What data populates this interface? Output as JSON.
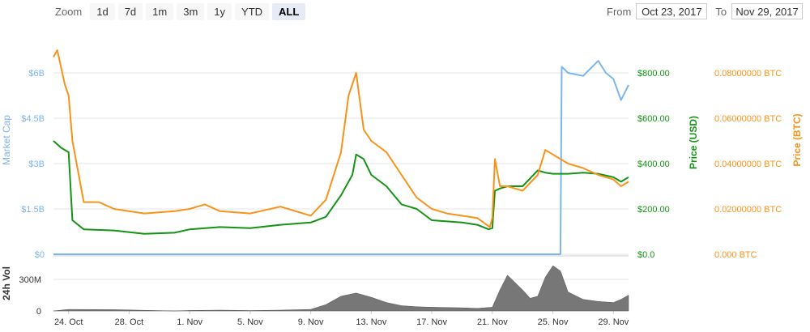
{
  "zoom": {
    "label": "Zoom",
    "buttons": [
      "1d",
      "7d",
      "1m",
      "3m",
      "1y",
      "YTD",
      "ALL"
    ],
    "active": "ALL"
  },
  "range": {
    "from_label": "From",
    "from_value": "Oct 23, 2017",
    "to_label": "To",
    "to_value": "Nov 29, 2017"
  },
  "colors": {
    "market_cap": "#7cb5ec",
    "price_usd": "#149414",
    "price_btc": "#f7931a",
    "volume": "#777777"
  },
  "chart_data": {
    "type": "line",
    "x_start": "2017-10-23",
    "x_end": "2017-11-30",
    "x_tick_labels": [
      "24. Oct",
      "28. Oct",
      "1. Nov",
      "5. Nov",
      "9. Nov",
      "13. Nov",
      "17. Nov",
      "21. Nov",
      "25. Nov",
      "29. Nov"
    ],
    "x_tick_dates": [
      "2017-10-24",
      "2017-10-28",
      "2017-11-01",
      "2017-11-05",
      "2017-11-09",
      "2017-11-13",
      "2017-11-17",
      "2017-11-21",
      "2017-11-25",
      "2017-11-29"
    ],
    "axes": {
      "market_cap": {
        "title": "Market Cap",
        "ticks": [
          "$0",
          "$1.5B",
          "$3B",
          "$4.5B",
          "$6B"
        ],
        "min": 0,
        "max": 6000000000
      },
      "price_usd": {
        "title": "Price (USD)",
        "ticks": [
          "$0.0",
          "$200.00",
          "$400.00",
          "$600.00",
          "$800.00"
        ],
        "min": 0,
        "max": 800
      },
      "price_btc": {
        "title": "Price (BTC)",
        "ticks": [
          "0.000 BTC",
          "0.02000000 BTC",
          "0.04000000 BTC",
          "0.06000000 BTC",
          "0.08000000 BTC"
        ],
        "min": 0,
        "max": 0.08
      },
      "volume": {
        "title": "24h Vol",
        "ticks": [
          "0",
          "300M"
        ],
        "min": 0,
        "max": 300000000
      }
    },
    "series": [
      {
        "name": "Market Cap",
        "axis": "market_cap",
        "points": [
          [
            "2017-10-23",
            0
          ],
          [
            "2017-11-25T12",
            0
          ],
          [
            "2017-11-25T14",
            6200000000
          ],
          [
            "2017-11-26",
            6000000000
          ],
          [
            "2017-11-27",
            5900000000
          ],
          [
            "2017-11-28",
            6400000000
          ],
          [
            "2017-11-28T12",
            6000000000
          ],
          [
            "2017-11-29",
            5800000000
          ],
          [
            "2017-11-29T12",
            5100000000
          ],
          [
            "2017-11-30",
            5600000000
          ]
        ]
      },
      {
        "name": "Price (USD)",
        "axis": "price_usd",
        "points": [
          [
            "2017-10-23",
            500
          ],
          [
            "2017-10-23T12",
            470
          ],
          [
            "2017-10-24",
            450
          ],
          [
            "2017-10-24T06",
            150
          ],
          [
            "2017-10-25",
            110
          ],
          [
            "2017-10-27",
            105
          ],
          [
            "2017-10-29",
            90
          ],
          [
            "2017-10-31",
            95
          ],
          [
            "2017-11-01",
            110
          ],
          [
            "2017-11-03",
            120
          ],
          [
            "2017-11-05",
            115
          ],
          [
            "2017-11-07",
            130
          ],
          [
            "2017-11-09",
            140
          ],
          [
            "2017-11-10",
            165
          ],
          [
            "2017-11-11",
            260
          ],
          [
            "2017-11-11T18",
            350
          ],
          [
            "2017-11-12",
            440
          ],
          [
            "2017-11-12T12",
            420
          ],
          [
            "2017-11-13",
            350
          ],
          [
            "2017-11-14",
            300
          ],
          [
            "2017-11-15",
            220
          ],
          [
            "2017-11-16",
            200
          ],
          [
            "2017-11-17",
            150
          ],
          [
            "2017-11-18",
            145
          ],
          [
            "2017-11-19",
            140
          ],
          [
            "2017-11-20",
            130
          ],
          [
            "2017-11-20T18",
            110
          ],
          [
            "2017-11-21",
            115
          ],
          [
            "2017-11-21T04",
            280
          ],
          [
            "2017-11-21T12",
            290
          ],
          [
            "2017-11-22",
            300
          ],
          [
            "2017-11-23",
            300
          ],
          [
            "2017-11-24",
            370
          ],
          [
            "2017-11-24T12",
            360
          ],
          [
            "2017-11-25",
            355
          ],
          [
            "2017-11-26",
            355
          ],
          [
            "2017-11-27",
            360
          ],
          [
            "2017-11-28",
            355
          ],
          [
            "2017-11-29",
            340
          ],
          [
            "2017-11-29T12",
            320
          ],
          [
            "2017-11-30",
            340
          ]
        ]
      },
      {
        "name": "Price (BTC)",
        "axis": "price_btc",
        "points": [
          [
            "2017-10-23",
            0.087
          ],
          [
            "2017-10-23T06",
            0.09
          ],
          [
            "2017-10-23T18",
            0.075
          ],
          [
            "2017-10-24",
            0.07
          ],
          [
            "2017-10-24T06",
            0.05
          ],
          [
            "2017-10-25",
            0.023
          ],
          [
            "2017-10-26",
            0.023
          ],
          [
            "2017-10-27",
            0.02
          ],
          [
            "2017-10-29",
            0.018
          ],
          [
            "2017-10-31",
            0.019
          ],
          [
            "2017-11-01",
            0.02
          ],
          [
            "2017-11-02",
            0.022
          ],
          [
            "2017-11-03",
            0.019
          ],
          [
            "2017-11-05",
            0.018
          ],
          [
            "2017-11-07",
            0.021
          ],
          [
            "2017-11-09",
            0.017
          ],
          [
            "2017-11-10",
            0.024
          ],
          [
            "2017-11-11",
            0.045
          ],
          [
            "2017-11-11T12",
            0.07
          ],
          [
            "2017-11-12",
            0.08
          ],
          [
            "2017-11-12T12",
            0.055
          ],
          [
            "2017-11-13",
            0.05
          ],
          [
            "2017-11-14",
            0.045
          ],
          [
            "2017-11-15",
            0.035
          ],
          [
            "2017-11-16",
            0.025
          ],
          [
            "2017-11-17",
            0.02
          ],
          [
            "2017-11-18",
            0.018
          ],
          [
            "2017-11-20",
            0.016
          ],
          [
            "2017-11-20T20",
            0.012
          ],
          [
            "2017-11-21",
            0.016
          ],
          [
            "2017-11-21T04",
            0.042
          ],
          [
            "2017-11-21T12",
            0.03
          ],
          [
            "2017-11-22",
            0.03
          ],
          [
            "2017-11-23",
            0.028
          ],
          [
            "2017-11-24",
            0.035
          ],
          [
            "2017-11-24T12",
            0.046
          ],
          [
            "2017-11-25",
            0.044
          ],
          [
            "2017-11-26",
            0.04
          ],
          [
            "2017-11-27",
            0.038
          ],
          [
            "2017-11-28",
            0.035
          ],
          [
            "2017-11-29",
            0.033
          ],
          [
            "2017-11-29T12",
            0.03
          ],
          [
            "2017-11-30",
            0.032
          ]
        ]
      },
      {
        "name": "24h Vol",
        "axis": "volume",
        "points": [
          [
            "2017-10-23",
            0
          ],
          [
            "2017-10-24",
            15000000
          ],
          [
            "2017-10-27",
            12000000
          ],
          [
            "2017-10-31",
            0
          ],
          [
            "2017-11-01",
            5000000
          ],
          [
            "2017-11-03",
            8000000
          ],
          [
            "2017-11-05",
            4000000
          ],
          [
            "2017-11-07",
            8000000
          ],
          [
            "2017-11-09",
            15000000
          ],
          [
            "2017-11-10",
            60000000
          ],
          [
            "2017-11-11",
            140000000
          ],
          [
            "2017-11-12",
            170000000
          ],
          [
            "2017-11-13",
            130000000
          ],
          [
            "2017-11-14",
            80000000
          ],
          [
            "2017-11-15",
            50000000
          ],
          [
            "2017-11-16",
            40000000
          ],
          [
            "2017-11-17",
            35000000
          ],
          [
            "2017-11-19",
            30000000
          ],
          [
            "2017-11-20",
            25000000
          ],
          [
            "2017-11-21",
            35000000
          ],
          [
            "2017-11-21T12",
            200000000
          ],
          [
            "2017-11-22",
            340000000
          ],
          [
            "2017-11-23",
            200000000
          ],
          [
            "2017-11-23T12",
            120000000
          ],
          [
            "2017-11-24",
            140000000
          ],
          [
            "2017-11-24T12",
            320000000
          ],
          [
            "2017-11-25",
            430000000
          ],
          [
            "2017-11-25T12",
            380000000
          ],
          [
            "2017-11-26",
            180000000
          ],
          [
            "2017-11-27",
            110000000
          ],
          [
            "2017-11-28",
            90000000
          ],
          [
            "2017-11-29",
            80000000
          ],
          [
            "2017-11-29T12",
            110000000
          ],
          [
            "2017-11-30",
            150000000
          ]
        ]
      }
    ],
    "grid": true,
    "legend": "none"
  }
}
